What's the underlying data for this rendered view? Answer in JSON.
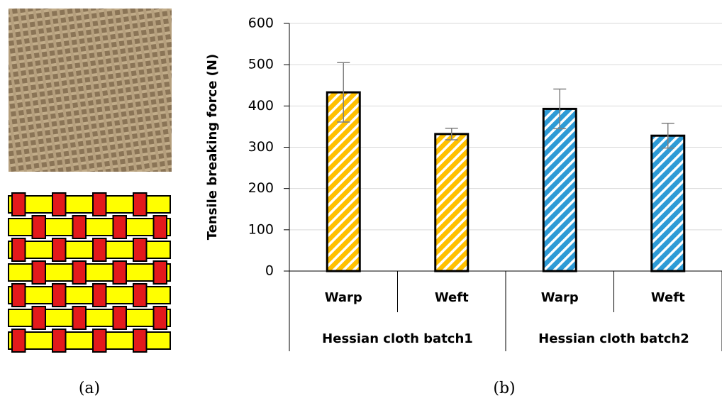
{
  "chart_data": {
    "type": "bar",
    "y_label": "Tensile breaking force (N)",
    "categories": [
      "Warp",
      "Weft",
      "Warp",
      "Weft"
    ],
    "groups": [
      "Hessian cloth batch1",
      "Hessian cloth batch2"
    ],
    "values": [
      433,
      332,
      393,
      328
    ],
    "errors": [
      72,
      14,
      48,
      30
    ],
    "colors": [
      "#ffc000",
      "#ffc000",
      "#2e9bd6",
      "#2e9bd6"
    ],
    "ylim": [
      0,
      600
    ],
    "yticks": [
      0,
      100,
      200,
      300,
      400,
      500,
      600
    ],
    "grid": true,
    "panel_labels": [
      "(a)",
      "(b)"
    ]
  }
}
